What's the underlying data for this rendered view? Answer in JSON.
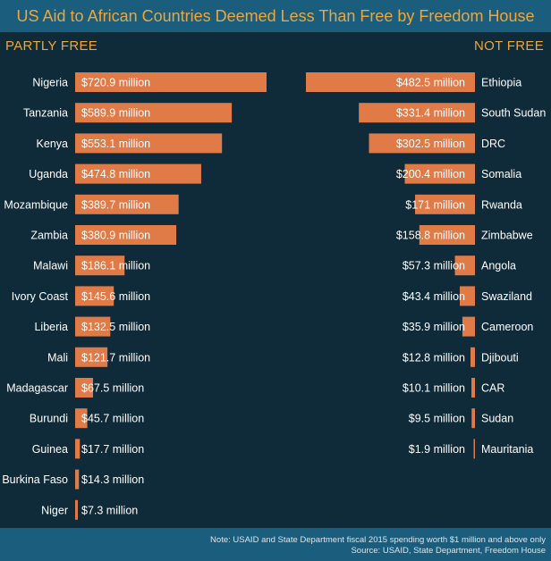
{
  "title": "US Aid to African Countries Deemed Less Than Free by Freedom House",
  "footer": {
    "note": "Note: USAID and State Department fiscal 2015 spending worth $1 million and above only",
    "source": "Source: USAID, State Department, Freedom House"
  },
  "colors": {
    "background": "#0f2a38",
    "banner": "#1a5d7c",
    "heading": "#f0a53a",
    "bar": "#e07b48",
    "label": "#ffffff"
  },
  "chart_data": [
    {
      "type": "bar",
      "orientation": "horizontal",
      "title": "PARTLY FREE",
      "unit": "million USD",
      "categories": [
        "Nigeria",
        "Tanzania",
        "Kenya",
        "Uganda",
        "Mozambique",
        "Zambia",
        "Malawi",
        "Ivory Coast",
        "Liberia",
        "Mali",
        "Madagascar",
        "Burundi",
        "Guinea",
        "Burkina Faso",
        "Niger"
      ],
      "values": [
        720.9,
        589.9,
        553.1,
        474.8,
        389.7,
        380.9,
        186.1,
        145.6,
        132.5,
        121.7,
        67.5,
        45.7,
        17.7,
        14.3,
        7.3
      ],
      "labels": [
        "$720.9 million",
        "$589.9 million",
        "$553.1 million",
        "$474.8 million",
        "$389.7 million",
        "$380.9 million",
        "$186.1 million",
        "$145.6 million",
        "$132.5 million",
        "$121.7 million",
        "$67.5 million",
        "$45.7 million",
        "$17.7 million",
        "$14.3 million",
        "$7.3 million"
      ],
      "grid": false,
      "legend": "none"
    },
    {
      "type": "bar",
      "orientation": "horizontal",
      "title": "NOT FREE",
      "unit": "million USD",
      "categories": [
        "Ethiopia",
        "South Sudan",
        "DRC",
        "Somalia",
        "Rwanda",
        "Zimbabwe",
        "Angola",
        "Swaziland",
        "Cameroon",
        "Djibouti",
        "CAR",
        "Sudan",
        "Mauritania"
      ],
      "values": [
        482.5,
        331.4,
        302.5,
        200.4,
        171,
        158.8,
        57.3,
        43.4,
        35.9,
        12.8,
        10.1,
        9.5,
        1.9
      ],
      "labels": [
        "$482.5 million",
        "$331.4 million",
        "$302.5 million",
        "$200.4 million",
        "$171 million",
        "$158.8 million",
        "$57.3 million",
        "$43.4 million",
        "$35.9 million",
        "$12.8 million",
        "$10.1 million",
        "$9.5 million",
        "$1.9 million"
      ],
      "grid": false,
      "legend": "none"
    }
  ]
}
